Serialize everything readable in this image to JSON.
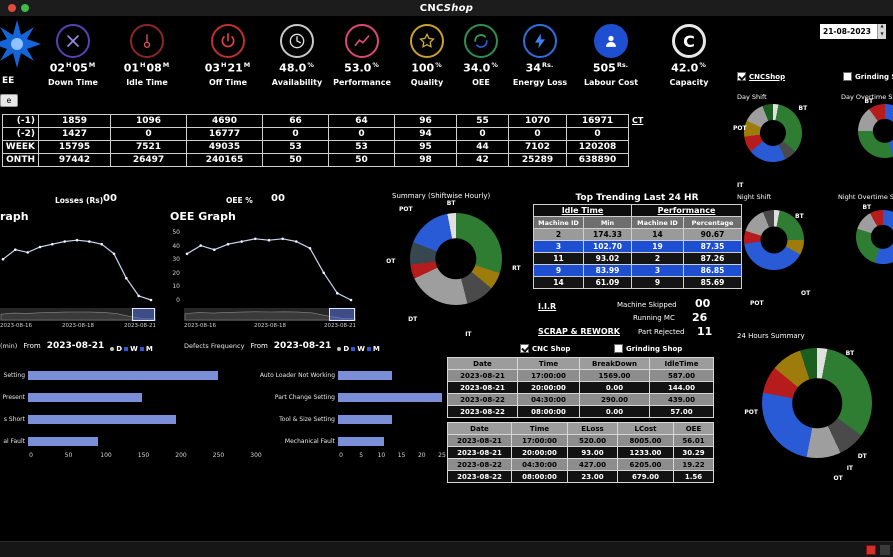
{
  "window": {
    "title_cnc": "CNC",
    "title_shop": "Shop",
    "logo_text": "EE",
    "corner_button_label": "e"
  },
  "header_controls": {
    "date_value": "21-08-2023",
    "cnc_checkbox_label": "CNCShop",
    "cnc_checked": true,
    "grinding_checkbox_label": "Grinding Shop",
    "grinding_checked": false
  },
  "kpis": [
    {
      "name": "down-time",
      "icon": "crossed-tools-icon",
      "accent": "#5a3fb5",
      "label": "Down Time",
      "v1": "02",
      "u1": "H",
      "v2": "05",
      "u2": "M"
    },
    {
      "name": "idle-time",
      "icon": "pendulum-icon",
      "accent": "#8b2626",
      "label": "Idle Time",
      "v1": "01",
      "u1": "H",
      "v2": "08",
      "u2": "M"
    },
    {
      "name": "off-time",
      "icon": "power-icon",
      "accent": "#c03030",
      "label": "Off Time",
      "v1": "03",
      "u1": "H",
      "v2": "21",
      "u2": "M"
    },
    {
      "name": "availability",
      "icon": "clock-icon",
      "accent": "#c9c9c9",
      "label": "Availability",
      "v1": "48.0",
      "u1": "%"
    },
    {
      "name": "performance",
      "icon": "trend-chart-icon",
      "accent": "#e0457b",
      "label": "Performance",
      "v1": "53.0",
      "u1": "%"
    },
    {
      "name": "quality",
      "icon": "star-icon",
      "accent": "#c9a227",
      "label": "Quality",
      "v1": "100",
      "u1": "%"
    },
    {
      "name": "oee",
      "icon": "cycle-arrows-icon",
      "accent": "#2f8f4e",
      "label": "OEE",
      "v1": "34.0",
      "u1": "%"
    },
    {
      "name": "energy-loss",
      "icon": "lightning-bolt-icon",
      "accent": "#2f6fe0",
      "label": "Energy Loss",
      "v1": "34",
      "u1": "Rs."
    },
    {
      "name": "labour-cost",
      "icon": "person-icon",
      "accent": "#1d4fd0",
      "label": "Labour Cost",
      "v1": "505",
      "u1": "Rs."
    },
    {
      "name": "capacity",
      "icon": "capacity-c-icon",
      "accent": "#e8e8e8",
      "label": "Capacity",
      "v1": "42.0",
      "u1": "%"
    }
  ],
  "history_table": {
    "ct_link": "CT",
    "rows": [
      {
        "label": "(-1)",
        "values": [
          "1859",
          "1096",
          "4690",
          "66",
          "64",
          "96",
          "55",
          "1070",
          "16971"
        ]
      },
      {
        "label": "(-2)",
        "values": [
          "1427",
          "0",
          "16777",
          "0",
          "0",
          "94",
          "0",
          "0",
          "0"
        ]
      },
      {
        "label": "WEEK",
        "values": [
          "15795",
          "7521",
          "49035",
          "53",
          "53",
          "95",
          "44",
          "7102",
          "120208"
        ]
      },
      {
        "label": "ONTH",
        "values": [
          "97442",
          "26497",
          "240165",
          "50",
          "50",
          "98",
          "42",
          "25289",
          "638890"
        ]
      }
    ]
  },
  "loss_panel": {
    "losses_label": "Losses (Rs)",
    "losses_value": "00",
    "from_label": "From",
    "from_date": "2023-08-21",
    "periods": [
      "D",
      "W",
      "M"
    ]
  },
  "oee_panel": {
    "oee_label": "OEE %",
    "oee_value": "00",
    "from_label": "From",
    "from_date": "2023-08-21",
    "periods": [
      "D",
      "W",
      "M"
    ]
  },
  "trend": {
    "title": "Top Trending Last 24 HR",
    "group_headers": [
      "Idle Time",
      "Performance"
    ],
    "col_headers": [
      "Machine ID",
      "Min",
      "Machine ID",
      "Percentage"
    ],
    "rows": [
      [
        "2",
        "174.33",
        "14",
        "90.67"
      ],
      [
        "3",
        "102.70",
        "19",
        "87.35"
      ],
      [
        "11",
        "93.02",
        "2",
        "87.26"
      ],
      [
        "9",
        "83.99",
        "3",
        "86.85"
      ],
      [
        "14",
        "61.09",
        "9",
        "85.69"
      ]
    ],
    "iir_link": "I.I.R",
    "machine_skipped_label": "Machine Skipped",
    "machine_skipped_value": "00",
    "running_mc_label": "Running MC",
    "running_mc_value": "26",
    "scrap_link": "SCRAP & REWORK",
    "part_rejected_label": "Part Rejected",
    "part_rejected_value": "11"
  },
  "bottom_filters": {
    "cnc_label": "CNC Shop",
    "cnc_checked": true,
    "grinding_label": "Grinding Shop",
    "grinding_checked": false
  },
  "breakdown_table": {
    "headers": [
      "Date",
      "Time",
      "BreakDown",
      "IdleTime"
    ],
    "rows": [
      [
        "2023-08-21",
        "17:00:00",
        "1569.00",
        "587.00"
      ],
      [
        "2023-08-21",
        "20:00:00",
        "0.00",
        "144.00"
      ],
      [
        "2023-08-22",
        "04:30:00",
        "290.00",
        "439.00"
      ],
      [
        "2023-08-22",
        "08:00:00",
        "0.00",
        "57.00"
      ]
    ]
  },
  "cost_table": {
    "headers": [
      "Date",
      "Time",
      "ELoss",
      "LCost",
      "OEE"
    ],
    "rows": [
      [
        "2023-08-21",
        "17:00:00",
        "520.00",
        "8005.00",
        "56.01"
      ],
      [
        "2023-08-21",
        "20:00:00",
        "93.00",
        "1233.00",
        "30.29"
      ],
      [
        "2023-08-22",
        "04:30:00",
        "427.00",
        "6205.00",
        "19.22"
      ],
      [
        "2023-08-22",
        "08:00:00",
        "23.00",
        "679.00",
        "1.56"
      ]
    ]
  },
  "chart_data": [
    {
      "id": "loss-graph",
      "type": "line",
      "title": "raph",
      "x_ticks": [
        "2023-08-16",
        "2023-08-18",
        "2023-08-21"
      ],
      "values": [
        30,
        37,
        35,
        39,
        41,
        43,
        44,
        43,
        41,
        34,
        16,
        3,
        0
      ],
      "ylim": [
        0,
        50
      ],
      "xlabel": "",
      "ylabel": ""
    },
    {
      "id": "oee-graph",
      "type": "line",
      "title": "OEE Graph",
      "x_ticks": [
        "2023-08-16",
        "2023-08-18",
        "2023-08-21"
      ],
      "y_ticks": [
        0,
        10,
        20,
        30,
        40,
        50
      ],
      "values": [
        34,
        40,
        37,
        41,
        43,
        45,
        44,
        45,
        43,
        38,
        20,
        5,
        0
      ],
      "ylim": [
        0,
        50
      ],
      "xlabel": "",
      "ylabel": ""
    },
    {
      "id": "loss-bars",
      "type": "bar",
      "title": "",
      "xlabel": "(min)",
      "categories": [
        "Setting",
        "Present",
        "s Short",
        "al Fault"
      ],
      "values": [
        250,
        150,
        195,
        92
      ],
      "x_ticks": [
        0,
        50,
        100,
        150,
        200,
        250,
        300
      ],
      "xlim": [
        0,
        300
      ],
      "bar_color": "#7b8fd9"
    },
    {
      "id": "defect-bars",
      "type": "bar",
      "title": "Defects Frequency",
      "xlabel": "",
      "categories": [
        "Auto Loader Not Working",
        "Part Change Setting",
        "Tool & Size Setting",
        "Mechanical Fault"
      ],
      "values": [
        13,
        25,
        13,
        11
      ],
      "x_ticks": [
        0,
        5,
        10,
        15,
        20,
        25
      ],
      "xlim": [
        0,
        25
      ],
      "bar_color": "#7b8fd9"
    },
    {
      "id": "day-shift",
      "type": "donut",
      "title": "Day Shift",
      "segments": [
        [
          "#e0e0e0",
          3
        ],
        [
          "#2e7d32",
          33
        ],
        [
          "#4a4a4a",
          7
        ],
        [
          "#2a5bd7",
          21
        ],
        [
          "#b71c1c",
          9
        ],
        [
          "#9e7c0c",
          9
        ],
        [
          "#9e9e9e",
          12
        ],
        [
          "#1b5e20",
          6
        ]
      ],
      "labels": [
        {
          "t": "BT",
          "l": 94,
          "tp": 2
        },
        {
          "t": "POT",
          "l": -19,
          "tp": 36
        },
        {
          "t": "IT",
          "l": -12,
          "tp": 134
        }
      ]
    },
    {
      "id": "day-overtime",
      "type": "donut",
      "title": "Day Overtime Shift",
      "segments": [
        [
          "#2a5bd7",
          45
        ],
        [
          "#2e7d32",
          30
        ],
        [
          "#9e9e9e",
          15
        ],
        [
          "#b71c1c",
          10
        ]
      ],
      "labels": [
        {
          "t": "BT",
          "l": 12,
          "tp": -12
        }
      ]
    },
    {
      "id": "night-shift",
      "type": "donut",
      "title": "Night Shift",
      "segments": [
        [
          "#e0e0e0",
          3
        ],
        [
          "#2e7d32",
          22
        ],
        [
          "#9e7c0c",
          8
        ],
        [
          "#2a5bd7",
          40
        ],
        [
          "#b71c1c",
          7
        ],
        [
          "#9e9e9e",
          14
        ],
        [
          "#4a4a4a",
          6
        ]
      ],
      "labels": [
        {
          "t": "BT",
          "l": 85,
          "tp": 5
        },
        {
          "t": "IT",
          "l": -20,
          "tp": 50
        },
        {
          "t": "OT",
          "l": 95,
          "tp": 133
        },
        {
          "t": "POT",
          "l": 10,
          "tp": 150
        }
      ]
    },
    {
      "id": "night-overtime",
      "type": "donut",
      "title": "Night Overtime Shift",
      "segments": [
        [
          "#2a5bd7",
          55
        ],
        [
          "#2e7d32",
          25
        ],
        [
          "#9e9e9e",
          12
        ],
        [
          "#b71c1c",
          8
        ]
      ],
      "labels": [
        {
          "t": "BT",
          "l": 12,
          "tp": -12
        }
      ]
    },
    {
      "id": "summary-hourly",
      "type": "donut",
      "title": "Summary  (Shiftwise Hourly)",
      "segments": [
        [
          "#2e7d32",
          30
        ],
        [
          "#9e7c0c",
          6
        ],
        [
          "#4a4a4a",
          10
        ],
        [
          "#9e9e9e",
          22
        ],
        [
          "#b71c1c",
          5
        ],
        [
          "#37474f",
          8
        ],
        [
          "#2a5bd7",
          16
        ],
        [
          "#e0e0e0",
          3
        ]
      ],
      "labels": [
        {
          "t": "POT",
          "l": -12,
          "tp": -8
        },
        {
          "t": "BT",
          "l": 40,
          "tp": -14
        },
        {
          "t": "RT",
          "l": 111,
          "tp": 56
        },
        {
          "t": "OT",
          "l": -26,
          "tp": 49
        },
        {
          "t": "DT",
          "l": -2,
          "tp": 112
        },
        {
          "t": "IT",
          "l": 60,
          "tp": 128
        }
      ]
    },
    {
      "id": "h24-summary",
      "type": "donut",
      "title": "24 Hours Summary",
      "segments": [
        [
          "#e0e0e0",
          3
        ],
        [
          "#2e7d32",
          32
        ],
        [
          "#4a4a4a",
          8
        ],
        [
          "#9e9e9e",
          10
        ],
        [
          "#2a5bd7",
          25
        ],
        [
          "#b71c1c",
          8
        ],
        [
          "#9e7c0c",
          9
        ],
        [
          "#1b5e20",
          5
        ]
      ],
      "labels": [
        {
          "t": "BT",
          "l": 76,
          "tp": 2
        },
        {
          "t": "POT",
          "l": -16,
          "tp": 55
        },
        {
          "t": "DT",
          "l": 87,
          "tp": 95
        },
        {
          "t": "IT",
          "l": 77,
          "tp": 106
        },
        {
          "t": "OT",
          "l": 65,
          "tp": 115
        }
      ]
    }
  ]
}
